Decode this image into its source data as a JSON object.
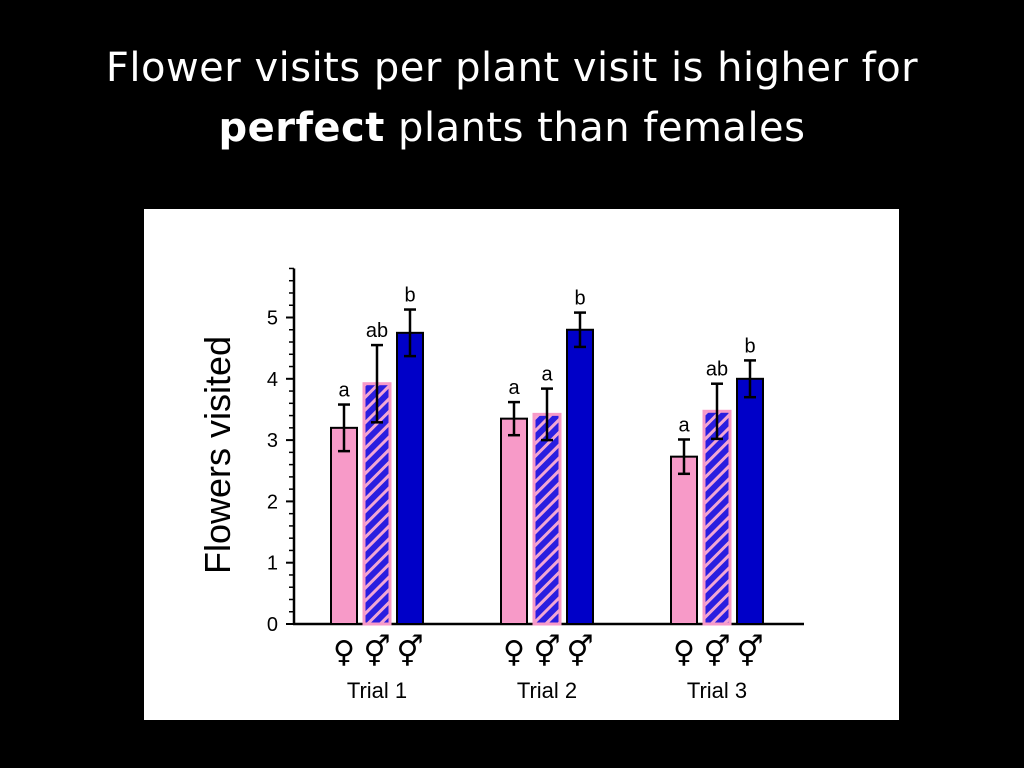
{
  "slide": {
    "title_line1": "Flower visits per plant visit is higher for",
    "title_bold": "perfect",
    "title_rest": " plants than females"
  },
  "chart_data": {
    "type": "bar",
    "title": "",
    "xlabel": "",
    "ylabel": "Flowers visited",
    "ylim": [
      0,
      5.8
    ],
    "yticks": [
      0,
      1,
      2,
      3,
      4,
      5
    ],
    "categories": [
      "Trial 1",
      "Trial 2",
      "Trial 3"
    ],
    "grid": false,
    "series": [
      {
        "symbol": "♀",
        "color": "#f79ac8",
        "pattern": "solid",
        "values": [
          3.2,
          3.35,
          2.73
        ],
        "errors": [
          0.38,
          0.27,
          0.28
        ],
        "labels": [
          "a",
          "a",
          "a"
        ]
      },
      {
        "symbol": "⚥",
        "color": "#f79ac8",
        "fill_color": "#2a1ee0",
        "pattern": "hatched",
        "values": [
          3.92,
          3.42,
          3.47
        ],
        "errors": [
          0.63,
          0.42,
          0.45
        ],
        "labels": [
          "ab",
          "a",
          "ab"
        ]
      },
      {
        "symbol": "⚥",
        "color": "#0000c8",
        "pattern": "solid",
        "values": [
          4.75,
          4.8,
          4.0
        ],
        "errors": [
          0.38,
          0.28,
          0.3
        ],
        "labels": [
          "b",
          "b",
          "b"
        ]
      }
    ]
  }
}
